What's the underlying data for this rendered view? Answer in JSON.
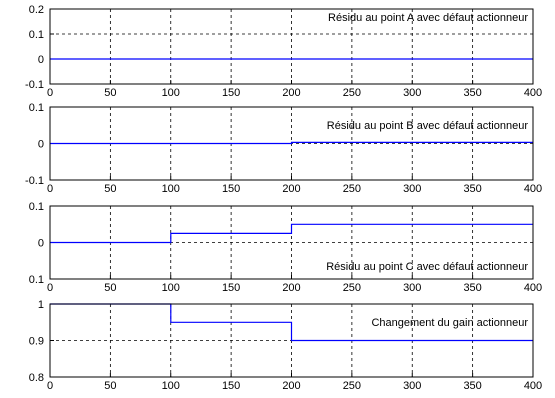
{
  "chart_data": [
    {
      "type": "line",
      "title": "",
      "xlabel": "",
      "ylabel": "",
      "xlim": [
        0,
        400
      ],
      "ylim": [
        -0.1,
        0.2
      ],
      "xticks": [
        "0",
        "50",
        "100",
        "150",
        "200",
        "250",
        "300",
        "350",
        "400"
      ],
      "yticks": [
        "0.2",
        "0.1",
        "0",
        "-0.1"
      ],
      "grid": true,
      "annotation": "Résidu au point A avec défaut actionneur",
      "series": [
        {
          "color": "#0000ff",
          "x": [
            0,
            400
          ],
          "y": [
            0,
            0
          ]
        }
      ]
    },
    {
      "type": "line",
      "title": "",
      "xlabel": "",
      "ylabel": "",
      "xlim": [
        0,
        400
      ],
      "ylim": [
        -0.1,
        0.1
      ],
      "xticks": [
        "0",
        "50",
        "100",
        "150",
        "200",
        "250",
        "300",
        "350",
        "400"
      ],
      "yticks": [
        "0.1",
        "0",
        "-0.1"
      ],
      "grid": true,
      "annotation": "Résidu au point B avec défaut actionneur",
      "series": [
        {
          "color": "#0000ff",
          "x": [
            0,
            200,
            200,
            400
          ],
          "y": [
            0,
            0,
            0.003,
            0.003
          ]
        }
      ]
    },
    {
      "type": "line",
      "title": "",
      "xlabel": "",
      "ylabel": "",
      "xlim": [
        0,
        400
      ],
      "ylim": [
        -0.1,
        0.1
      ],
      "xticks": [
        "0",
        "50",
        "100",
        "150",
        "200",
        "250",
        "300",
        "350",
        "400"
      ],
      "yticks": [
        "0.1",
        "0",
        "0.1"
      ],
      "grid": true,
      "annotation": "Résidu au point C avec défaut actionneur",
      "series": [
        {
          "color": "#0000ff",
          "x": [
            0,
            100,
            100,
            200,
            200,
            400
          ],
          "y": [
            0,
            0,
            0.025,
            0.025,
            0.05,
            0.05
          ]
        }
      ]
    },
    {
      "type": "line",
      "title": "",
      "xlabel": "",
      "ylabel": "",
      "xlim": [
        0,
        400
      ],
      "ylim": [
        0.8,
        1.0
      ],
      "xticks": [
        "0",
        "50",
        "100",
        "150",
        "200",
        "250",
        "300",
        "350",
        "400"
      ],
      "yticks": [
        "1",
        "0.9",
        "0.8"
      ],
      "grid": true,
      "annotation": "Changement du gain actionneur",
      "series": [
        {
          "color": "#0000ff",
          "x": [
            0,
            100,
            100,
            200,
            200,
            400
          ],
          "y": [
            1.0,
            1.0,
            0.95,
            0.95,
            0.9,
            0.9
          ]
        }
      ]
    }
  ]
}
